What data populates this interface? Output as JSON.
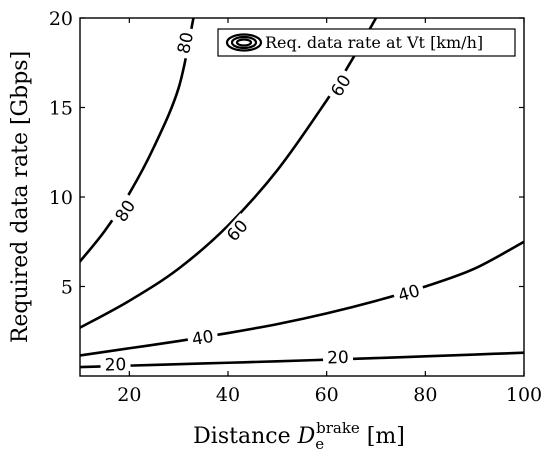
{
  "chart_data": {
    "type": "line",
    "title": "",
    "xlabel": {
      "prefix": "Distance ",
      "symbol": "D",
      "subscript": "e",
      "superscript": "brake",
      "unit": " [m]"
    },
    "ylabel": "Required data rate [Gbps]",
    "xlim": [
      10,
      100
    ],
    "ylim": [
      0,
      20
    ],
    "xticks": [
      20,
      40,
      60,
      80,
      100
    ],
    "yticks": [
      5,
      10,
      15,
      20
    ],
    "grid": false,
    "legend": {
      "position": "top-right",
      "entries": [
        "Req. data rate at Vt [km/h]"
      ]
    },
    "series": [
      {
        "name": "20",
        "x": [
          10,
          20,
          30,
          40,
          50,
          60,
          70,
          80,
          90,
          100
        ],
        "y": [
          0.5,
          0.58,
          0.66,
          0.74,
          0.82,
          0.91,
          1.0,
          1.1,
          1.2,
          1.3
        ],
        "label_at": [
          {
            "x": 17.2,
            "y": 0.6
          },
          {
            "x": 62.3,
            "y": 1.0
          }
        ]
      },
      {
        "name": "40",
        "x": [
          10,
          20,
          30,
          40,
          50,
          60,
          70,
          80,
          90,
          100
        ],
        "y": [
          1.15,
          1.55,
          1.95,
          2.4,
          2.9,
          3.5,
          4.2,
          5.0,
          6.0,
          7.5
        ],
        "label_at": [
          {
            "x": 34.9,
            "y": 2.1
          },
          {
            "x": 76.7,
            "y": 4.6
          }
        ]
      },
      {
        "name": "60",
        "x": [
          10,
          20,
          30,
          40,
          50,
          60,
          65,
          70
        ],
        "y": [
          2.7,
          4.2,
          6.0,
          8.4,
          11.5,
          15.4,
          17.6,
          20.0
        ],
        "label_at": [
          {
            "x": 42.0,
            "y": 8.1
          },
          {
            "x": 63.0,
            "y": 16.2
          }
        ]
      },
      {
        "name": "80",
        "x": [
          10,
          15,
          20,
          25,
          30,
          33
        ],
        "y": [
          6.4,
          8.1,
          10.2,
          12.8,
          16.1,
          20.0
        ],
        "label_at": [
          {
            "x": 19.3,
            "y": 9.2
          },
          {
            "x": 31.5,
            "y": 18.6
          }
        ]
      }
    ]
  }
}
